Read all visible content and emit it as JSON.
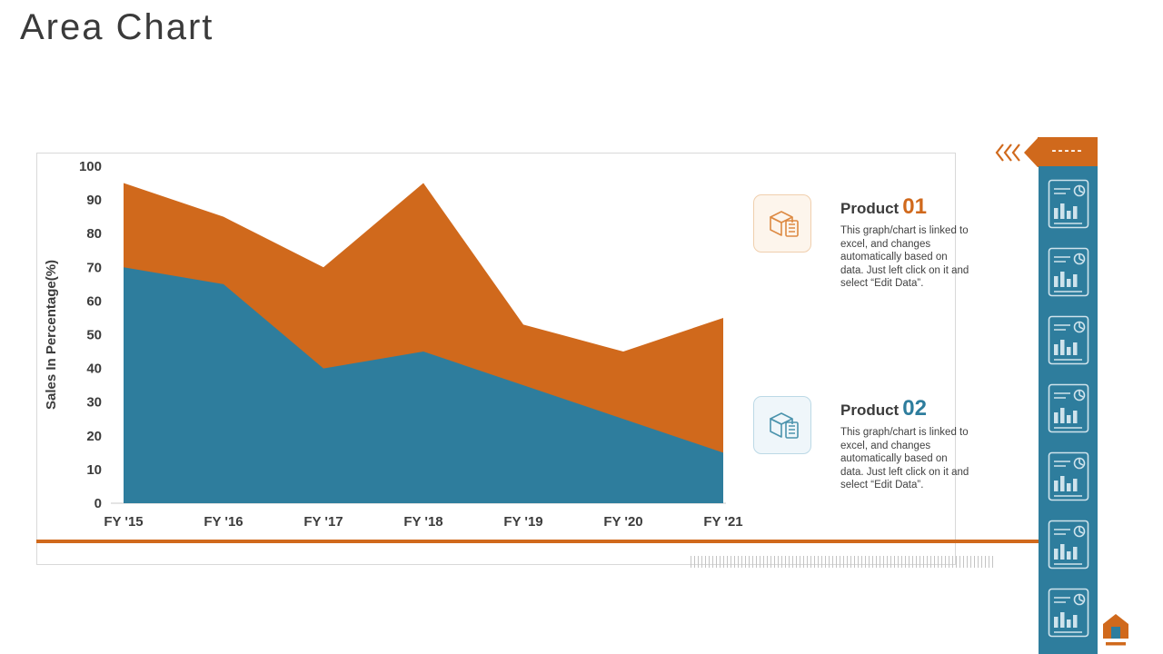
{
  "page": {
    "title": "Area Chart"
  },
  "chart_data": {
    "type": "area",
    "categories": [
      "FY '15",
      "FY '16",
      "FY '17",
      "FY '18",
      "FY '19",
      "FY '20",
      "FY '21"
    ],
    "series": [
      {
        "name": "Product 01",
        "color": "#d0691c",
        "values": [
          95,
          85,
          70,
          95,
          53,
          45,
          55
        ]
      },
      {
        "name": "Product 02",
        "color": "#2e7d9d",
        "values": [
          70,
          65,
          40,
          45,
          35,
          25,
          15
        ]
      }
    ],
    "title": "Area Chart",
    "xlabel": "",
    "ylabel": "Sales In Percentage(%)",
    "ylim": [
      0,
      100
    ],
    "yticks": [
      0,
      10,
      20,
      30,
      40,
      50,
      60,
      70,
      80,
      90,
      100
    ],
    "grid": false,
    "legend_position": "right"
  },
  "legend": [
    {
      "title_prefix": "Product",
      "title_number": "01",
      "number_color": "#d0691c",
      "icon": "box-clipboard-icon",
      "description": "This graph/chart is linked to excel, and changes automatically based on data. Just left click on it and select “Edit Data”."
    },
    {
      "title_prefix": "Product",
      "title_number": "02",
      "number_color": "#2e7d9d",
      "icon": "box-clipboard-icon",
      "description": "This graph/chart is linked to excel, and changes automatically based on data. Just left click on it and select “Edit Data”."
    }
  ],
  "sidebar": {
    "color": "#2e7d9d",
    "tab_dashes": "-----",
    "icon_count": 7,
    "icon": "chart-document-icon"
  },
  "colors": {
    "accent_orange": "#d0691c",
    "accent_teal": "#2e7d9d",
    "frame_gray": "#d9d9d9"
  }
}
